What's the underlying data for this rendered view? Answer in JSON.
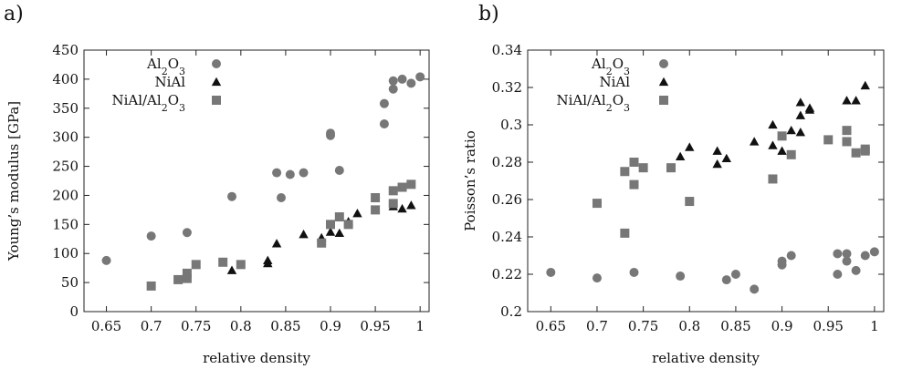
{
  "chart_data": [
    {
      "type": "scatter",
      "panel_label": "a)",
      "xlabel": "relative density",
      "ylabel": "Young’s modulus [GPa]",
      "xlim": [
        0.625,
        1.01
      ],
      "ylim": [
        0,
        450
      ],
      "x_ticks": [
        0.65,
        0.7,
        0.75,
        0.8,
        0.85,
        0.9,
        0.95,
        1
      ],
      "x_tick_labels": [
        "0.65",
        "0.7",
        "0.75",
        "0.8",
        "0.85",
        "0.9",
        "0.95",
        "1"
      ],
      "y_ticks": [
        0,
        50,
        100,
        150,
        200,
        250,
        300,
        350,
        400,
        450
      ],
      "y_tick_labels": [
        "0",
        "50",
        "100",
        "150",
        "200",
        "250",
        "300",
        "350",
        "400",
        "450"
      ],
      "legend_position": "top-left",
      "series": [
        {
          "name": "Al2O3",
          "marker": "circle",
          "color": "#777777",
          "points": [
            [
              0.65,
              88
            ],
            [
              0.7,
              130
            ],
            [
              0.74,
              136
            ],
            [
              0.79,
              198
            ],
            [
              0.84,
              239
            ],
            [
              0.845,
              196
            ],
            [
              0.855,
              236
            ],
            [
              0.87,
              239
            ],
            [
              0.9,
              303
            ],
            [
              0.9,
              307
            ],
            [
              0.91,
              243
            ],
            [
              0.96,
              323
            ],
            [
              0.96,
              358
            ],
            [
              0.97,
              383
            ],
            [
              0.97,
              397
            ],
            [
              0.98,
              400
            ],
            [
              0.99,
              393
            ],
            [
              1.0,
              404
            ]
          ]
        },
        {
          "name": "NiAl",
          "marker": "triangle",
          "color": "#111111",
          "points": [
            [
              0.79,
              71
            ],
            [
              0.83,
              83
            ],
            [
              0.83,
              88
            ],
            [
              0.84,
              117
            ],
            [
              0.87,
              133
            ],
            [
              0.89,
              127
            ],
            [
              0.9,
              137
            ],
            [
              0.91,
              135
            ],
            [
              0.92,
              155
            ],
            [
              0.93,
              169
            ],
            [
              0.97,
              181
            ],
            [
              0.98,
              177
            ],
            [
              0.99,
              183
            ]
          ]
        },
        {
          "name": "NiAl/Al2O3",
          "marker": "square",
          "color": "#777777",
          "points": [
            [
              0.7,
              44
            ],
            [
              0.73,
              55
            ],
            [
              0.74,
              57
            ],
            [
              0.74,
              66
            ],
            [
              0.75,
              81
            ],
            [
              0.78,
              85
            ],
            [
              0.8,
              81
            ],
            [
              0.89,
              118
            ],
            [
              0.9,
              150
            ],
            [
              0.91,
              163
            ],
            [
              0.92,
              150
            ],
            [
              0.95,
              175
            ],
            [
              0.95,
              196
            ],
            [
              0.97,
              186
            ],
            [
              0.97,
              208
            ],
            [
              0.98,
              214
            ],
            [
              0.99,
              219
            ]
          ]
        }
      ]
    },
    {
      "type": "scatter",
      "panel_label": "b)",
      "xlabel": "relative density",
      "ylabel": "Poisson’s ratio",
      "xlim": [
        0.625,
        1.01
      ],
      "ylim": [
        0.2,
        0.34
      ],
      "x_ticks": [
        0.65,
        0.7,
        0.75,
        0.8,
        0.85,
        0.9,
        0.95,
        1
      ],
      "x_tick_labels": [
        "0.65",
        "0.7",
        "0.75",
        "0.8",
        "0.85",
        "0.9",
        "0.95",
        "1"
      ],
      "y_ticks": [
        0.2,
        0.22,
        0.24,
        0.26,
        0.28,
        0.3,
        0.32,
        0.34
      ],
      "y_tick_labels": [
        "0.2",
        "0.22",
        "0.24",
        "0.26",
        "0.28",
        "0.3",
        "0.32",
        "0.34"
      ],
      "legend_position": "top-left",
      "series": [
        {
          "name": "Al2O3",
          "marker": "circle",
          "color": "#777777",
          "points": [
            [
              0.65,
              0.221
            ],
            [
              0.7,
              0.218
            ],
            [
              0.74,
              0.221
            ],
            [
              0.79,
              0.219
            ],
            [
              0.84,
              0.217
            ],
            [
              0.85,
              0.22
            ],
            [
              0.87,
              0.212
            ],
            [
              0.9,
              0.225
            ],
            [
              0.9,
              0.227
            ],
            [
              0.91,
              0.23
            ],
            [
              0.96,
              0.231
            ],
            [
              0.96,
              0.22
            ],
            [
              0.97,
              0.227
            ],
            [
              0.97,
              0.231
            ],
            [
              0.98,
              0.222
            ],
            [
              0.99,
              0.23
            ],
            [
              1.0,
              0.232
            ]
          ]
        },
        {
          "name": "NiAl",
          "marker": "triangle",
          "color": "#111111",
          "points": [
            [
              0.79,
              0.283
            ],
            [
              0.8,
              0.288
            ],
            [
              0.83,
              0.286
            ],
            [
              0.83,
              0.279
            ],
            [
              0.84,
              0.282
            ],
            [
              0.87,
              0.291
            ],
            [
              0.89,
              0.3
            ],
            [
              0.89,
              0.289
            ],
            [
              0.9,
              0.286
            ],
            [
              0.91,
              0.297
            ],
            [
              0.92,
              0.312
            ],
            [
              0.92,
              0.305
            ],
            [
              0.92,
              0.296
            ],
            [
              0.93,
              0.308
            ],
            [
              0.93,
              0.309
            ],
            [
              0.97,
              0.313
            ],
            [
              0.98,
              0.313
            ],
            [
              0.99,
              0.321
            ]
          ]
        },
        {
          "name": "NiAl/Al2O3",
          "marker": "square",
          "color": "#777777",
          "points": [
            [
              0.7,
              0.258
            ],
            [
              0.73,
              0.242
            ],
            [
              0.73,
              0.275
            ],
            [
              0.74,
              0.268
            ],
            [
              0.74,
              0.28
            ],
            [
              0.75,
              0.277
            ],
            [
              0.78,
              0.277
            ],
            [
              0.8,
              0.259
            ],
            [
              0.89,
              0.271
            ],
            [
              0.9,
              0.294
            ],
            [
              0.91,
              0.284
            ],
            [
              0.95,
              0.292
            ],
            [
              0.97,
              0.297
            ],
            [
              0.97,
              0.291
            ],
            [
              0.98,
              0.285
            ],
            [
              0.99,
              0.287
            ],
            [
              0.99,
              0.286
            ]
          ]
        }
      ]
    }
  ]
}
